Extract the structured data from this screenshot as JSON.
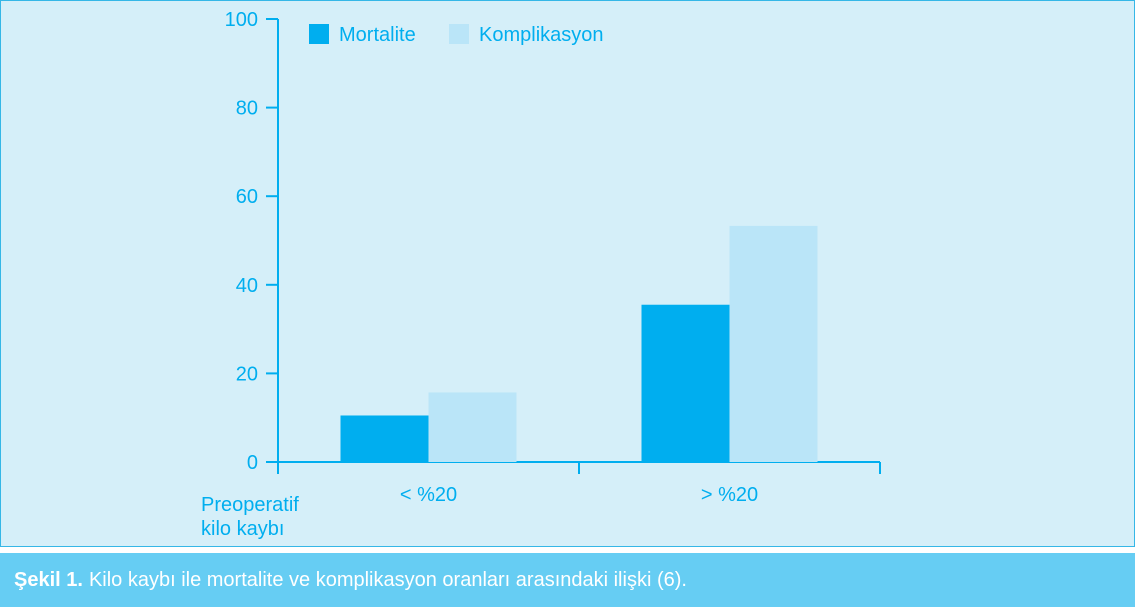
{
  "chart_data": {
    "type": "bar",
    "categories": [
      "< %20",
      "> %20"
    ],
    "series": [
      {
        "name": "Mortalite",
        "values": [
          10.5,
          35.5
        ],
        "color": "#00aeef"
      },
      {
        "name": "Komplikasyon",
        "values": [
          15.7,
          53.3
        ],
        "color": "#bae5f8"
      }
    ],
    "ylim": [
      0,
      100
    ],
    "yticks": [
      0,
      20,
      40,
      60,
      80,
      100
    ],
    "xlabel": "Preoperatif kilo kaybı",
    "xlabel_lines": [
      "Preoperatif",
      "kilo kaybı"
    ],
    "ylabel": "",
    "legend_position": "top-left",
    "grid": false,
    "axis_color": "#00aeef",
    "text_color": "#00aeef"
  },
  "caption": {
    "label": "Şekil 1.",
    "text": "Kilo kaybı ile mortalite ve komplikasyon oranları arasındaki ilişki (6)."
  }
}
